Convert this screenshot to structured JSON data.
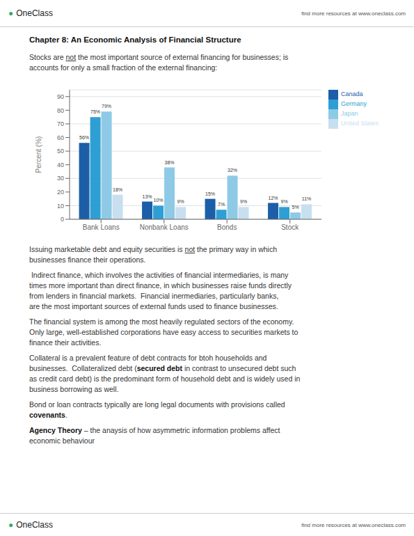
{
  "page": {
    "brand_mark": "●",
    "brand": "OneClass",
    "brand_color": "#3aaa5c",
    "header_right": "find more resources at www.oneclass.com",
    "footer_right": "find more resources at www.oneclass.com",
    "title": "Chapter 8:  An Economic Analysis of Financial Structure",
    "intro": [
      [
        {
          "text": "Stocks are "
        },
        {
          "text": "not",
          "underline": true
        },
        {
          "text": " the most important source of external financing for businesses; is"
        }
      ],
      [
        {
          "text": "accounts for only a small fraction of the external financing:"
        }
      ]
    ],
    "paragraphs": [
      [
        [
          {
            "text": "Issuing marketable debt and equity securities is "
          },
          {
            "text": "not",
            "underline": true
          },
          {
            "text": " the primary way in which"
          }
        ],
        [
          {
            "text": "businesses finance their operations."
          }
        ]
      ],
      [
        [
          {
            "text": " Indirect finance, which involves the activities of financial intermediaries, is many"
          }
        ],
        [
          {
            "text": "times more important than direct finance, in which businesses raise funds directly"
          }
        ],
        [
          {
            "text": "from lenders in financial markets.  Financial inermediaries, particularly banks,"
          }
        ],
        [
          {
            "text": "are the most important sources of external funds used to finance businesses."
          }
        ]
      ],
      [
        [
          {
            "text": "The financial system is among the most heavily regulated sectors of the economy."
          }
        ],
        [
          {
            "text": "Only large, well-established corporations have easy access to securities markets to"
          }
        ],
        [
          {
            "text": "finance their activities."
          }
        ]
      ],
      [
        [
          {
            "text": "Collateral is a prevalent feature of debt contracts for btoh households and"
          }
        ],
        [
          {
            "text": "businesses.  Collateralized debt ("
          },
          {
            "text": "secured debt",
            "bold": true
          },
          {
            "text": " in contrast to unsecured debt such"
          }
        ],
        [
          {
            "text": "as credit card debt) is the predominant form of household debt and is widely used in"
          }
        ],
        [
          {
            "text": "business borrowing as well."
          }
        ]
      ],
      [
        [
          {
            "text": "Bond or loan contracts typically are long legal documents with provisions called"
          }
        ],
        [
          {
            "text": "covenants",
            "bold": true
          },
          {
            "text": "."
          }
        ]
      ],
      [
        [
          {
            "text": "Agency Theory",
            "bold": true
          },
          {
            "text": " – the anaysis of how asymmetric information problems affect"
          }
        ],
        [
          {
            "text": "economic behaviour"
          }
        ]
      ]
    ]
  },
  "chart_data": {
    "type": "bar",
    "ylabel": "Percent (%)",
    "categories": [
      "Bank Loans",
      "Nonbank Loans",
      "Bonds",
      "Stock"
    ],
    "series": [
      {
        "name": "Canada",
        "color": "#1c5fa8",
        "values": [
          56,
          13,
          15,
          12
        ],
        "value_labels": [
          "56%",
          "13%",
          "15%",
          "12%"
        ]
      },
      {
        "name": "Germany",
        "color": "#2e9fd4",
        "values": [
          75,
          10,
          7,
          9
        ],
        "value_labels": [
          "75%",
          "10%",
          "7%",
          "9%"
        ]
      },
      {
        "name": "Japan",
        "color": "#8ecae6",
        "values": [
          79,
          38,
          32,
          5
        ],
        "value_labels": [
          "79%",
          "38%",
          "32%",
          "5%"
        ]
      },
      {
        "name": "United States",
        "color": "#c8dff0",
        "values": [
          18,
          9,
          9,
          11
        ],
        "value_labels": [
          "18%",
          "9%",
          "9%",
          "11%"
        ]
      }
    ],
    "ylim": [
      0,
      95
    ],
    "yticks": [
      0,
      10,
      20,
      30,
      40,
      50,
      60,
      70,
      80,
      90
    ],
    "grid": true,
    "legend": "upper right",
    "data_labels": true
  }
}
